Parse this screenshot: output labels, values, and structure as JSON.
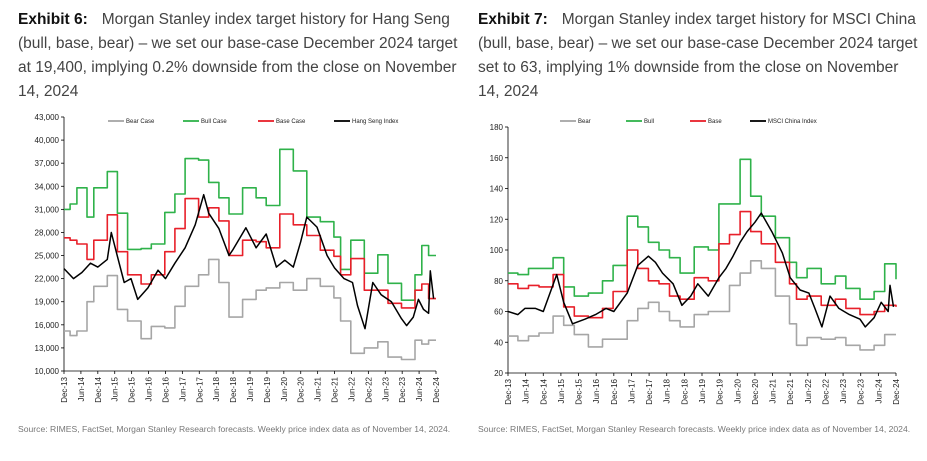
{
  "charts": [
    {
      "exhibit": "Exhibit 6:",
      "title": "Morgan Stanley index target history for Hang Seng (bull, base, bear) – we set our base-case December 2024 target at 19,400, implying 0.2% downside from the close on November 14, 2024",
      "source": "Source: RIMES, FactSet, Morgan Stanley Research forecasts. Weekly price index data as of November 14, 2024."
    },
    {
      "exhibit": "Exhibit 7:",
      "title": "Morgan Stanley index target history for MSCI China (bull, base, bear) – we set our base-case December 2024 target set to 63, implying 1% downside from the close on November 14, 2024",
      "source": "Source: RIMES, FactSet, Morgan Stanley Research forecasts. Weekly price index data as of November 14, 2024."
    }
  ],
  "chart_data": [
    {
      "type": "line",
      "ylim": [
        10000,
        43000
      ],
      "yticks": [
        10000,
        13000,
        16000,
        19000,
        22000,
        25000,
        28000,
        31000,
        34000,
        37000,
        40000,
        43000
      ],
      "ytick_labels": [
        "10,000",
        "13,000",
        "16,000",
        "19,000",
        "22,000",
        "25,000",
        "28,000",
        "31,000",
        "34,000",
        "37,000",
        "40,000",
        "43,000"
      ],
      "xlim": [
        2013.92,
        2024.92
      ],
      "xticks": [
        2013.92,
        2014.42,
        2014.92,
        2015.42,
        2015.92,
        2016.42,
        2016.92,
        2017.42,
        2017.92,
        2018.42,
        2018.92,
        2019.42,
        2019.92,
        2020.42,
        2020.92,
        2021.42,
        2021.92,
        2022.42,
        2022.92,
        2023.42,
        2023.92,
        2024.42,
        2024.92
      ],
      "xtick_labels": [
        "Dec-13",
        "Jun-14",
        "Dec-14",
        "Jun-15",
        "Dec-15",
        "Jun-16",
        "Dec-16",
        "Jun-17",
        "Dec-17",
        "Jun-18",
        "Dec-18",
        "Jun-19",
        "Dec-19",
        "Jun-20",
        "Dec-20",
        "Jun-21",
        "Dec-21",
        "Jun-22",
        "Dec-22",
        "Jun-23",
        "Dec-23",
        "Jun-24",
        "Dec-24"
      ],
      "series": [
        {
          "name": "Bear Case",
          "color": "#a6a6a6",
          "step": true,
          "x": [
            2013.92,
            2014.1,
            2014.3,
            2014.6,
            2014.8,
            2015.2,
            2015.5,
            2015.8,
            2016.2,
            2016.5,
            2016.9,
            2017.2,
            2017.5,
            2017.9,
            2018.2,
            2018.5,
            2018.8,
            2019.2,
            2019.6,
            2019.9,
            2020.3,
            2020.7,
            2021.1,
            2021.5,
            2021.9,
            2022.1,
            2022.4,
            2022.8,
            2023.2,
            2023.5,
            2023.9,
            2024.3,
            2024.5,
            2024.7,
            2024.92
          ],
          "y": [
            15200,
            14600,
            15200,
            19000,
            21000,
            22400,
            18000,
            16500,
            14200,
            15800,
            15600,
            18400,
            21000,
            22500,
            24500,
            21500,
            17000,
            19300,
            20500,
            20800,
            21500,
            20500,
            22000,
            21000,
            19500,
            16500,
            12300,
            13000,
            13800,
            11800,
            11500,
            14000,
            13500,
            14000,
            14000
          ]
        },
        {
          "name": "Bull Case",
          "color": "#2fb24a",
          "step": true,
          "x": [
            2013.92,
            2014.1,
            2014.3,
            2014.6,
            2014.8,
            2015.2,
            2015.5,
            2015.8,
            2016.2,
            2016.5,
            2016.9,
            2017.2,
            2017.5,
            2017.9,
            2018.2,
            2018.5,
            2018.8,
            2019.2,
            2019.6,
            2019.9,
            2020.3,
            2020.7,
            2021.1,
            2021.5,
            2021.9,
            2022.1,
            2022.4,
            2022.8,
            2023.2,
            2023.5,
            2023.9,
            2024.3,
            2024.5,
            2024.7,
            2024.92
          ],
          "y": [
            31000,
            31700,
            33800,
            30000,
            33800,
            35900,
            30500,
            25800,
            25900,
            26500,
            30600,
            33000,
            37600,
            37400,
            34500,
            32500,
            30400,
            33800,
            32500,
            31500,
            38800,
            36000,
            30000,
            29400,
            27400,
            23200,
            27000,
            22700,
            25100,
            21400,
            19200,
            22500,
            26300,
            25000,
            25000
          ]
        },
        {
          "name": "Base Case",
          "color": "#e8202a",
          "step": true,
          "x": [
            2013.92,
            2014.1,
            2014.3,
            2014.6,
            2014.8,
            2015.2,
            2015.5,
            2015.8,
            2016.2,
            2016.5,
            2016.9,
            2017.2,
            2017.5,
            2017.9,
            2018.2,
            2018.5,
            2018.8,
            2019.2,
            2019.6,
            2019.9,
            2020.3,
            2020.7,
            2021.1,
            2021.5,
            2021.9,
            2022.1,
            2022.4,
            2022.8,
            2023.2,
            2023.5,
            2023.9,
            2024.3,
            2024.5,
            2024.7,
            2024.92
          ],
          "y": [
            27300,
            27000,
            26500,
            24500,
            27000,
            30300,
            25500,
            22500,
            21300,
            22500,
            25500,
            28500,
            32400,
            30000,
            31200,
            29500,
            25000,
            27000,
            26800,
            26000,
            30400,
            29000,
            27600,
            25700,
            24900,
            22500,
            24600,
            20500,
            20500,
            18800,
            18200,
            20500,
            21300,
            19400,
            19400
          ]
        },
        {
          "name": "Hang Seng Index",
          "color": "#000000",
          "step": false,
          "x": [
            2013.92,
            2014.2,
            2014.45,
            2014.7,
            2014.92,
            2015.2,
            2015.32,
            2015.5,
            2015.7,
            2015.9,
            2016.1,
            2016.4,
            2016.7,
            2016.92,
            2017.2,
            2017.5,
            2017.8,
            2018.05,
            2018.2,
            2018.5,
            2018.8,
            2018.92,
            2019.3,
            2019.6,
            2019.9,
            2020.2,
            2020.45,
            2020.7,
            2020.92,
            2021.1,
            2021.4,
            2021.7,
            2021.92,
            2022.2,
            2022.45,
            2022.6,
            2022.82,
            2023.05,
            2023.3,
            2023.6,
            2023.9,
            2024.05,
            2024.25,
            2024.4,
            2024.55,
            2024.7,
            2024.75,
            2024.85
          ],
          "y": [
            23300,
            22000,
            22800,
            24000,
            23500,
            24500,
            28000,
            24900,
            21500,
            22000,
            19300,
            20800,
            23100,
            22000,
            24000,
            26000,
            29000,
            32900,
            30500,
            28500,
            25000,
            25800,
            28600,
            26000,
            27800,
            23500,
            24400,
            23500,
            26800,
            30000,
            28700,
            25000,
            23400,
            22000,
            21500,
            18500,
            15500,
            21500,
            19900,
            19000,
            16800,
            15900,
            17000,
            19300,
            18000,
            17500,
            23000,
            19400
          ]
        }
      ]
    },
    {
      "type": "line",
      "ylim": [
        20,
        180
      ],
      "yticks": [
        20,
        40,
        60,
        80,
        100,
        120,
        140,
        160,
        180
      ],
      "ytick_labels": [
        "20",
        "40",
        "60",
        "80",
        "100",
        "120",
        "140",
        "160",
        "180"
      ],
      "xlim": [
        2013.92,
        2024.92
      ],
      "xticks": [
        2013.92,
        2014.42,
        2014.92,
        2015.42,
        2015.92,
        2016.42,
        2016.92,
        2017.42,
        2017.92,
        2018.42,
        2018.92,
        2019.42,
        2019.92,
        2020.42,
        2020.92,
        2021.42,
        2021.92,
        2022.42,
        2022.92,
        2023.42,
        2023.92,
        2024.42,
        2024.92
      ],
      "xtick_labels": [
        "Dec-13",
        "Jun-14",
        "Dec-14",
        "Jun-15",
        "Dec-15",
        "Jun-16",
        "Dec-16",
        "Jun-17",
        "Dec-17",
        "Jun-18",
        "Dec-18",
        "Jun-19",
        "Dec-19",
        "Jun-20",
        "Dec-20",
        "Jun-21",
        "Dec-21",
        "Jun-22",
        "Dec-22",
        "Jun-23",
        "Dec-23",
        "Jun-24",
        "Dec-24"
      ],
      "series": [
        {
          "name": "Bear",
          "color": "#a6a6a6",
          "step": true,
          "x": [
            2013.92,
            2014.2,
            2014.5,
            2014.8,
            2015.2,
            2015.5,
            2015.8,
            2016.2,
            2016.6,
            2016.9,
            2017.3,
            2017.6,
            2017.9,
            2018.2,
            2018.5,
            2018.8,
            2019.2,
            2019.6,
            2019.9,
            2020.2,
            2020.5,
            2020.8,
            2021.1,
            2021.5,
            2021.9,
            2022.1,
            2022.4,
            2022.8,
            2023.2,
            2023.5,
            2023.9,
            2024.3,
            2024.6,
            2024.92
          ],
          "y": [
            44,
            41,
            44,
            46,
            57,
            51,
            45,
            37,
            42,
            42,
            54,
            62,
            66,
            60,
            54,
            50,
            58,
            60,
            60,
            77,
            85,
            93,
            88,
            70,
            52,
            38,
            43,
            42,
            43,
            38,
            35,
            38,
            45,
            45
          ]
        },
        {
          "name": "Bull",
          "color": "#2fb24a",
          "step": true,
          "x": [
            2013.92,
            2014.2,
            2014.5,
            2014.8,
            2015.2,
            2015.5,
            2015.8,
            2016.2,
            2016.6,
            2016.9,
            2017.3,
            2017.6,
            2017.9,
            2018.2,
            2018.5,
            2018.8,
            2019.2,
            2019.6,
            2019.9,
            2020.2,
            2020.5,
            2020.8,
            2021.1,
            2021.5,
            2021.9,
            2022.1,
            2022.4,
            2022.8,
            2023.2,
            2023.5,
            2023.9,
            2024.3,
            2024.6,
            2024.92
          ],
          "y": [
            85,
            84,
            88,
            88,
            95,
            76,
            70,
            72,
            80,
            90,
            122,
            115,
            105,
            100,
            95,
            85,
            102,
            100,
            130,
            130,
            159,
            135,
            122,
            108,
            92,
            82,
            88,
            78,
            83,
            75,
            68,
            73,
            91,
            81
          ]
        },
        {
          "name": "Base",
          "color": "#e8202a",
          "step": true,
          "x": [
            2013.92,
            2014.2,
            2014.5,
            2014.8,
            2015.2,
            2015.5,
            2015.8,
            2016.2,
            2016.6,
            2016.9,
            2017.3,
            2017.6,
            2017.9,
            2018.2,
            2018.5,
            2018.8,
            2019.2,
            2019.6,
            2019.9,
            2020.2,
            2020.5,
            2020.8,
            2021.1,
            2021.5,
            2021.9,
            2022.1,
            2022.4,
            2022.8,
            2023.2,
            2023.5,
            2023.9,
            2024.3,
            2024.6,
            2024.92
          ],
          "y": [
            78,
            75,
            77,
            76,
            84,
            63,
            57,
            56,
            62,
            73,
            100,
            88,
            80,
            78,
            70,
            68,
            82,
            80,
            104,
            110,
            125,
            112,
            104,
            92,
            78,
            68,
            70,
            64,
            68,
            62,
            58,
            60,
            64,
            63
          ]
        },
        {
          "name": "MSCI China Index",
          "color": "#000000",
          "step": false,
          "x": [
            2013.92,
            2014.2,
            2014.4,
            2014.7,
            2014.92,
            2015.3,
            2015.5,
            2015.75,
            2016.1,
            2016.4,
            2016.7,
            2016.92,
            2017.3,
            2017.6,
            2017.9,
            2018.1,
            2018.3,
            2018.6,
            2018.85,
            2019.1,
            2019.3,
            2019.6,
            2019.9,
            2020.1,
            2020.3,
            2020.5,
            2020.7,
            2020.92,
            2021.1,
            2021.4,
            2021.7,
            2021.92,
            2022.2,
            2022.45,
            2022.62,
            2022.82,
            2023.05,
            2023.3,
            2023.6,
            2023.9,
            2024.05,
            2024.3,
            2024.5,
            2024.7,
            2024.75,
            2024.85
          ],
          "y": [
            60,
            58,
            62,
            62,
            60,
            84,
            66,
            52,
            55,
            58,
            62,
            60,
            72,
            90,
            96,
            92,
            85,
            78,
            64,
            70,
            78,
            70,
            82,
            88,
            96,
            105,
            112,
            118,
            124,
            112,
            98,
            82,
            74,
            72,
            62,
            50,
            70,
            62,
            58,
            55,
            50,
            56,
            66,
            60,
            77,
            63
          ]
        }
      ]
    }
  ]
}
